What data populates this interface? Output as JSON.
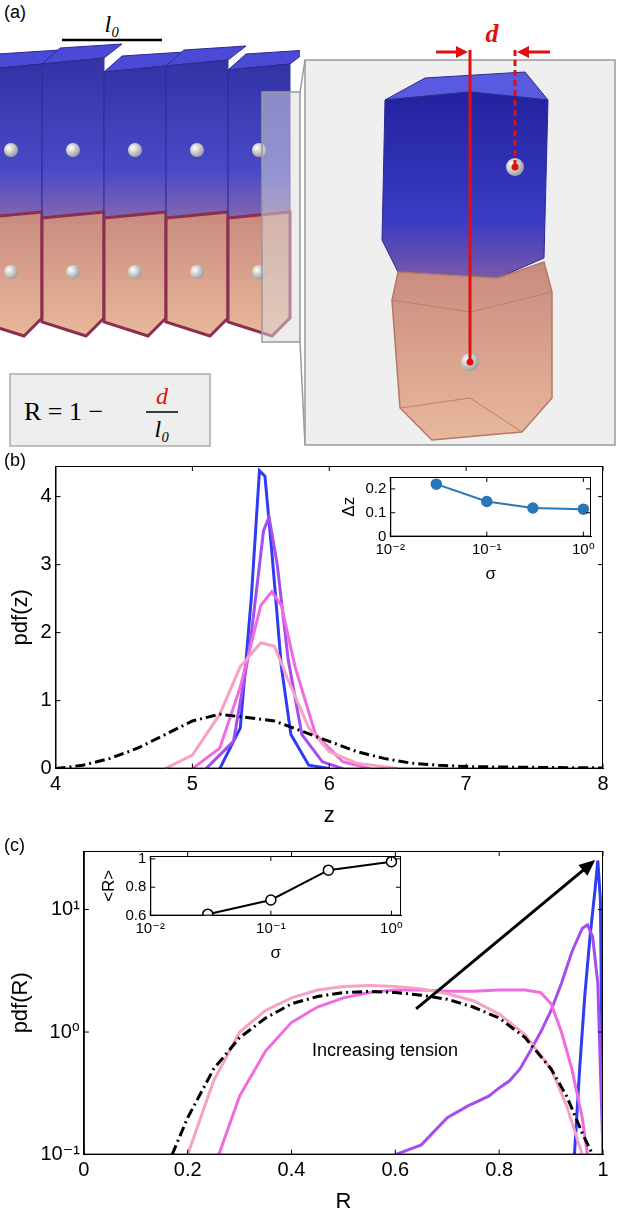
{
  "diagram": {
    "panel": "(a)",
    "scale_bar": "l₀",
    "distance_label": "d",
    "formula": {
      "left": "R = 1 −",
      "numerator": "d",
      "denominator": "l₀"
    }
  },
  "chart_data": [
    {
      "panel": "(b)",
      "type": "line",
      "x_label": "z",
      "y_label": "pdf(z)",
      "xlim": [
        4,
        8
      ],
      "xticks": [
        4,
        5,
        6,
        7,
        8
      ],
      "ylim": [
        0,
        4.45
      ],
      "yticks": [
        0,
        1,
        2,
        3,
        4
      ],
      "grid": false,
      "series": [
        {
          "color": "#000000",
          "line_style": "dash_dot",
          "x": [
            4.0,
            4.2,
            4.4,
            4.6,
            4.8,
            5.0,
            5.2,
            5.4,
            5.6,
            5.8,
            6.0,
            6.2,
            6.4,
            6.6,
            6.8,
            7.0,
            7.4,
            8.0
          ],
          "values": [
            0.0,
            0.05,
            0.15,
            0.3,
            0.5,
            0.7,
            0.8,
            0.75,
            0.7,
            0.55,
            0.4,
            0.25,
            0.15,
            0.08,
            0.05,
            0.03,
            0.02,
            0.01
          ]
        },
        {
          "color": "#f7a1c4",
          "line_style": "solid",
          "x": [
            4.8,
            5.0,
            5.2,
            5.35,
            5.5,
            5.6,
            5.7,
            5.85,
            6.0,
            6.2,
            6.5
          ],
          "values": [
            0.0,
            0.2,
            0.8,
            1.5,
            1.85,
            1.8,
            1.3,
            0.6,
            0.25,
            0.08,
            0.0
          ]
        },
        {
          "color": "#f06ae0",
          "line_style": "solid",
          "x": [
            5.0,
            5.2,
            5.35,
            5.5,
            5.58,
            5.65,
            5.75,
            5.9,
            6.1,
            6.3
          ],
          "values": [
            0.0,
            0.3,
            1.2,
            2.4,
            2.6,
            2.4,
            1.5,
            0.5,
            0.1,
            0.0
          ]
        },
        {
          "color": "#a64df0",
          "line_style": "solid",
          "x": [
            5.1,
            5.3,
            5.42,
            5.52,
            5.56,
            5.62,
            5.7,
            5.8,
            5.95,
            6.1
          ],
          "values": [
            0.0,
            0.4,
            1.8,
            3.5,
            3.7,
            3.0,
            1.6,
            0.5,
            0.1,
            0.0
          ]
        },
        {
          "color": "#2f3cf5",
          "line_style": "solid",
          "x": [
            5.2,
            5.35,
            5.43,
            5.49,
            5.53,
            5.58,
            5.65,
            5.72,
            5.85,
            6.0
          ],
          "values": [
            0.0,
            0.6,
            2.5,
            4.38,
            4.3,
            3.2,
            1.5,
            0.5,
            0.05,
            0.0
          ]
        }
      ],
      "inset": {
        "type": "line",
        "x_label": "σ",
        "y_label": "Δz",
        "log": "x",
        "xlim": [
          0.01,
          1.2
        ],
        "xticks": [
          {
            "value": 0.01,
            "label": "10⁻²"
          },
          {
            "value": 0.1,
            "label": "10⁻¹"
          },
          {
            "value": 1,
            "label": "10⁰"
          }
        ],
        "ylim": [
          0,
          0.25
        ],
        "yticks": [
          0,
          0.1,
          0.2
        ],
        "grid": false,
        "series": [
          {
            "color": "#2a77b8",
            "marker": "circle",
            "line_style": "solid",
            "x": [
              0.03,
              0.1,
              0.3,
              1
            ],
            "values": [
              0.22,
              0.147,
              0.12,
              0.115
            ]
          }
        ]
      }
    },
    {
      "panel": "(c)",
      "type": "line",
      "x_label": "R",
      "y_label": "pdf(R)",
      "log": "y",
      "xlim": [
        0,
        1
      ],
      "xticks": [
        0,
        0.2,
        0.4,
        0.6,
        0.8,
        1
      ],
      "ylim": [
        0.1,
        30
      ],
      "yticks": [
        {
          "value": 0.1,
          "label": "10⁻¹"
        },
        {
          "value": 1,
          "label": "10⁰"
        },
        {
          "value": 10,
          "label": "10¹"
        }
      ],
      "grid": false,
      "annotations": [
        "Increasing tension"
      ],
      "series": [
        {
          "color": "#000000",
          "line_style": "dash_dot",
          "x": [
            0.17,
            0.2,
            0.25,
            0.3,
            0.35,
            0.4,
            0.45,
            0.5,
            0.55,
            0.6,
            0.65,
            0.7,
            0.75,
            0.8,
            0.85,
            0.9,
            0.93,
            0.96,
            0.98
          ],
          "values": [
            0.1,
            0.2,
            0.5,
            0.9,
            1.3,
            1.7,
            1.95,
            2.1,
            2.15,
            2.1,
            2.0,
            1.85,
            1.6,
            1.3,
            0.9,
            0.5,
            0.3,
            0.15,
            0.1
          ]
        },
        {
          "color": "#f7a1c4",
          "line_style": "solid",
          "x": [
            0.2,
            0.25,
            0.3,
            0.35,
            0.4,
            0.45,
            0.5,
            0.55,
            0.6,
            0.65,
            0.7,
            0.75,
            0.8,
            0.85,
            0.9,
            0.93,
            0.96
          ],
          "values": [
            0.1,
            0.4,
            1.0,
            1.5,
            1.9,
            2.2,
            2.35,
            2.4,
            2.35,
            2.25,
            2.05,
            1.8,
            1.4,
            0.95,
            0.5,
            0.25,
            0.1
          ]
        },
        {
          "color": "#f06ae0",
          "line_style": "solid",
          "x": [
            0.26,
            0.3,
            0.35,
            0.4,
            0.45,
            0.5,
            0.55,
            0.6,
            0.65,
            0.7,
            0.75,
            0.8,
            0.85,
            0.88,
            0.9,
            0.92,
            0.94,
            0.96,
            0.97
          ],
          "values": [
            0.1,
            0.3,
            0.7,
            1.2,
            1.6,
            1.9,
            2.1,
            2.2,
            2.2,
            2.15,
            2.15,
            2.2,
            2.2,
            2.1,
            1.7,
            1.0,
            0.5,
            0.2,
            0.1
          ]
        },
        {
          "color": "#a64df0",
          "line_style": "solid",
          "x": [
            0.6,
            0.65,
            0.7,
            0.74,
            0.78,
            0.8,
            0.82,
            0.84,
            0.86,
            0.88,
            0.9,
            0.92,
            0.94,
            0.96,
            0.97,
            0.98,
            0.99,
            1.0
          ],
          "values": [
            0.1,
            0.12,
            0.2,
            0.25,
            0.3,
            0.35,
            0.4,
            0.5,
            0.7,
            1.0,
            1.5,
            2.5,
            4.5,
            7.0,
            7.5,
            6.0,
            2.5,
            0.1
          ]
        },
        {
          "color": "#2f3cf5",
          "line_style": "solid",
          "x": [
            0.945,
            0.955,
            0.965,
            0.975,
            0.985,
            0.99,
            0.995,
            1.0
          ],
          "values": [
            0.1,
            0.5,
            2.0,
            6.0,
            15,
            25,
            12,
            0.1
          ]
        }
      ],
      "inset": {
        "type": "line",
        "x_label": "σ",
        "y_label": "<R>",
        "log": "x",
        "xlim": [
          0.01,
          1.2
        ],
        "xticks": [
          {
            "value": 0.01,
            "label": "10⁻²"
          },
          {
            "value": 0.1,
            "label": "10⁻¹"
          },
          {
            "value": 1,
            "label": "10⁰"
          }
        ],
        "ylim": [
          0.6,
          1.02
        ],
        "yticks": [
          0.6,
          0.8,
          1
        ],
        "grid": false,
        "series": [
          {
            "color": "#000000",
            "marker": "open_circle",
            "line_style": "solid",
            "x": [
              0.03,
              0.1,
              0.3,
              1
            ],
            "values": [
              0.61,
              0.71,
              0.92,
              0.98
            ]
          }
        ]
      }
    }
  ]
}
